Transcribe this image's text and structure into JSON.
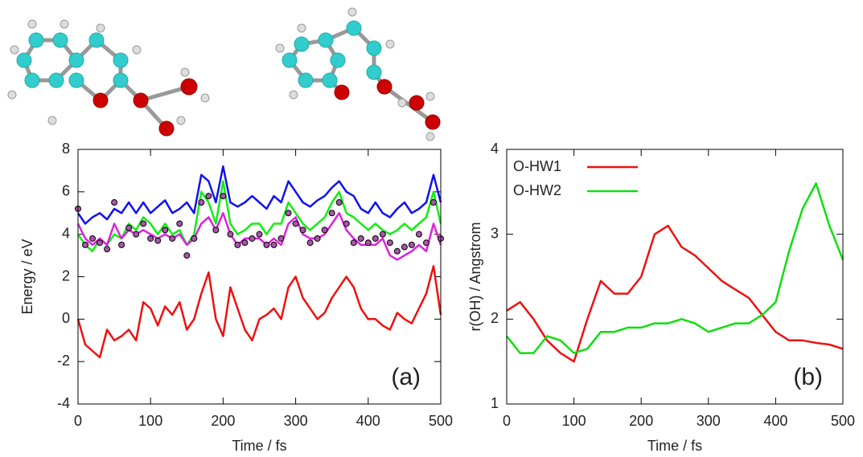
{
  "chart_data": [
    {
      "type": "line",
      "xlabel": "Time / fs",
      "ylabel": "Energy / eV",
      "annotation": "(a)",
      "x": [
        0,
        10,
        20,
        30,
        40,
        50,
        60,
        70,
        80,
        90,
        100,
        110,
        120,
        130,
        140,
        150,
        160,
        170,
        180,
        190,
        200,
        210,
        220,
        230,
        240,
        250,
        260,
        270,
        280,
        290,
        300,
        310,
        320,
        330,
        340,
        350,
        360,
        370,
        380,
        390,
        400,
        410,
        420,
        430,
        440,
        450,
        460,
        470,
        480,
        490,
        500
      ],
      "xlim": [
        0,
        500
      ],
      "xticks": [
        0,
        100,
        200,
        300,
        400,
        500
      ],
      "ylim": [
        -4,
        8
      ],
      "yticks": [
        -4,
        -2,
        0,
        2,
        4,
        6,
        8
      ],
      "series": [
        {
          "color": "#ee1111",
          "values": [
            0,
            -1.2,
            -1.5,
            -1.8,
            -0.5,
            -1,
            -0.8,
            -0.5,
            -1,
            0.8,
            0.5,
            -0.3,
            0.6,
            0.2,
            0.8,
            -0.5,
            0,
            1.2,
            2.2,
            0,
            -0.8,
            1.5,
            0.5,
            -0.5,
            -1,
            0,
            0.2,
            0.5,
            0,
            1.5,
            2,
            1,
            0.5,
            0,
            0.3,
            1,
            1.5,
            2,
            1.5,
            0.5,
            0,
            0,
            -0.3,
            -0.5,
            0.3,
            0,
            -0.2,
            0.5,
            1.2,
            2.5,
            0.2
          ]
        },
        {
          "color": "#1111ee",
          "values": [
            5,
            4.5,
            4.8,
            5,
            4.7,
            5.2,
            5,
            5.5,
            5,
            5.5,
            5,
            5.3,
            5.6,
            5,
            5.2,
            5.5,
            5,
            6.8,
            6.5,
            5.5,
            7.2,
            5.5,
            5.3,
            5.5,
            5.8,
            5.5,
            5.2,
            5.8,
            5.5,
            6.5,
            6,
            5.5,
            5.3,
            5.6,
            5.8,
            6.2,
            6.5,
            6,
            5.8,
            5.2,
            5,
            5.5,
            5,
            4.8,
            5.2,
            5.5,
            5,
            5.2,
            5.5,
            6.8,
            5.5
          ]
        },
        {
          "color": "#11ee11",
          "values": [
            4,
            3.5,
            3.2,
            3.8,
            3.5,
            4,
            3.8,
            4.5,
            4.2,
            4.8,
            4.5,
            4,
            4.5,
            4,
            4.2,
            3.5,
            4,
            6,
            5.5,
            4.5,
            6.5,
            4.5,
            4,
            4.2,
            4.5,
            4.5,
            4,
            4.5,
            4.5,
            5.5,
            5,
            4.5,
            4.2,
            4.5,
            4.8,
            5.5,
            6,
            5,
            4.8,
            4.5,
            4.2,
            4.5,
            4.2,
            4,
            4.2,
            4.5,
            4.2,
            4.5,
            4.8,
            6,
            4.5
          ]
        },
        {
          "color": "#dd22dd",
          "values": [
            4.5,
            3.8,
            3.5,
            3.8,
            3.5,
            4.5,
            3.8,
            4.2,
            4,
            4.2,
            4,
            3.8,
            4,
            3.8,
            4,
            3.5,
            3.8,
            4.5,
            4.8,
            4.2,
            5,
            4,
            3.5,
            3.8,
            3.8,
            3.8,
            3.5,
            3.8,
            3.5,
            4.5,
            4.8,
            4,
            3.8,
            3.8,
            4,
            4.5,
            5,
            4.2,
            3.8,
            3.5,
            3.5,
            3.5,
            3.8,
            3,
            2.8,
            3,
            3.2,
            3.5,
            3.2,
            4.5,
            3.5
          ]
        },
        {
          "color": "#000000",
          "marker": "circle",
          "marker_fill": "#aa55aa",
          "values": [
            5.2,
            3.5,
            3.8,
            3.6,
            3.3,
            5.5,
            3.5,
            4.3,
            4,
            4.5,
            3.8,
            3.7,
            4.2,
            3.8,
            4.5,
            3,
            3.8,
            5.5,
            5.8,
            4.2,
            5.8,
            4,
            3.5,
            3.6,
            3.8,
            4,
            3.5,
            3.5,
            3.8,
            5,
            4.5,
            4.2,
            3.6,
            3.8,
            4.2,
            5,
            5.5,
            4.5,
            3.6,
            3.8,
            3.6,
            3.8,
            4,
            3.6,
            3.2,
            3.4,
            3.5,
            4,
            3.6,
            5.5,
            3.8
          ]
        }
      ]
    },
    {
      "type": "line",
      "xlabel": "Time / fs",
      "ylabel": "r(OH) / Angstrom",
      "annotation": "(b)",
      "legend": "top-left",
      "x": [
        0,
        20,
        40,
        60,
        80,
        100,
        120,
        140,
        160,
        180,
        200,
        220,
        240,
        260,
        280,
        300,
        320,
        340,
        360,
        380,
        400,
        420,
        440,
        460,
        480,
        500
      ],
      "xlim": [
        0,
        500
      ],
      "xticks": [
        0,
        100,
        200,
        300,
        400,
        500
      ],
      "ylim": [
        1,
        4
      ],
      "yticks": [
        1,
        2,
        3,
        4
      ],
      "series": [
        {
          "name": "O-HW1",
          "color": "#ee1111",
          "values": [
            2.1,
            2.2,
            2.0,
            1.75,
            1.6,
            1.5,
            2.0,
            2.45,
            2.3,
            2.3,
            2.5,
            3.0,
            3.1,
            2.85,
            2.75,
            2.6,
            2.45,
            2.35,
            2.25,
            2.05,
            1.85,
            1.75,
            1.75,
            1.72,
            1.7,
            1.65
          ]
        },
        {
          "name": "O-HW2",
          "color": "#11dd11",
          "values": [
            1.8,
            1.6,
            1.6,
            1.8,
            1.75,
            1.6,
            1.65,
            1.85,
            1.85,
            1.9,
            1.9,
            1.95,
            1.95,
            2.0,
            1.95,
            1.85,
            1.9,
            1.95,
            1.95,
            2.05,
            2.2,
            2.8,
            3.3,
            3.6,
            3.1,
            2.7
          ]
        }
      ]
    }
  ]
}
